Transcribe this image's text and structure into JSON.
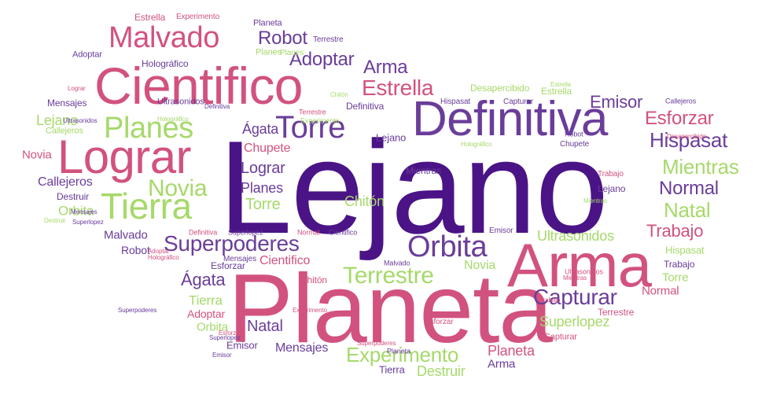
{
  "words": [
    "Lejano",
    "Planeta",
    "Arma",
    "Definitiva",
    "Cientifico",
    "Lograr",
    "Tierra",
    "Malvado",
    "Torre",
    "Planes",
    "Orbita",
    "Superpoderes",
    "Terrestre",
    "Capturar",
    "Hispasat",
    "Emisor",
    "Estrella",
    "Robot",
    "Adoptar",
    "Arma",
    "Novia",
    "Esforzar",
    "Mientras",
    "Normal",
    "Natal",
    "Trabajo",
    "Ultrasonidos",
    "Lograr",
    "Planes",
    "Torre",
    "Chitón",
    "Chupete",
    "Ágata",
    "Superlopez",
    "Experimento",
    "Planeta",
    "Destruir",
    "Mensajes",
    "Natal",
    "Lejano",
    "Callejeros",
    "Destruir",
    "Orbita",
    "Malvado",
    "Robot",
    "Ágata",
    "Tierra",
    "Adoptar",
    "Orbita",
    "Emisor",
    "Mensajes",
    "Tierra",
    "Arma",
    "Novia",
    "Cientifico",
    "Esforzar",
    "Chitón",
    "Superlopez",
    "Capturar",
    "Terrestre",
    "Normal",
    "Torre",
    "Hispasat",
    "Trabajo",
    "Estrella",
    "Experimento",
    "Planeta",
    "Terrestre",
    "Adoptar",
    "Holográfico",
    "Planes",
    "Mensajes",
    "Ultrasonidos",
    "Lejano",
    "Novia",
    "Callejeros",
    "Desapercibido",
    "Definitiva",
    "Hispasat",
    "Capturar",
    "Chupete",
    "Trabajo",
    "Mientras",
    "Ultrasonidos",
    "Holográfico",
    "Lejano",
    "Definitiva",
    "Superlopez",
    "Normal",
    "Cientifico",
    "Emisor",
    "Esforzar",
    "Malvado",
    "Experimento",
    "Superpoderes",
    "Holográfico",
    "Callejeros",
    "Desapercibido",
    "Robot",
    "Terrestre",
    "Estrella",
    "Experimento",
    "Planeta",
    "Adoptar",
    "Planes",
    "Mensajes",
    "Esforzar",
    "Superlopez",
    "Definitiva",
    "Mientras",
    "Destruir",
    "Chitón",
    "Emisor",
    "Holográfico",
    "Trabajo",
    "Estrella",
    "Lograr",
    "Superpoderes",
    "Ultrasonidos",
    "Mientras"
  ]
}
